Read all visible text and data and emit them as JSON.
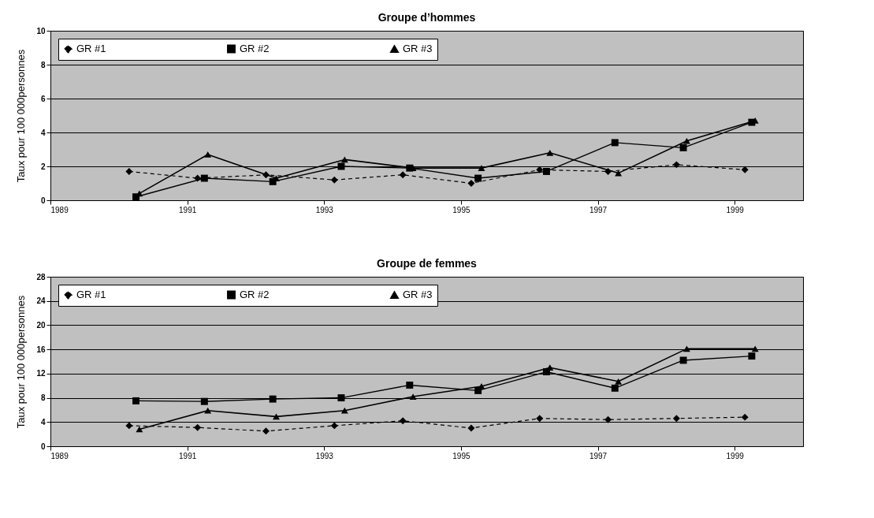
{
  "chart_data": [
    {
      "type": "line",
      "title": "Groupe d’hommes",
      "ylabel": "Taux pour 100 000personnes",
      "xlim": [
        1989,
        2000
      ],
      "xticks": [
        1989,
        1991,
        1993,
        1995,
        1997,
        1999
      ],
      "ylim": [
        0,
        10
      ],
      "yticks": [
        0,
        2,
        4,
        6,
        8,
        10
      ],
      "grid": "y",
      "legend": "top left",
      "series": [
        {
          "name": "GR #1",
          "color": "#000000",
          "marker": "diamond",
          "line_style": "dashed",
          "x": [
            1990.15,
            1991.15,
            1992.15,
            1993.15,
            1994.15,
            1995.15,
            1996.15,
            1997.15,
            1998.15,
            1999.15
          ],
          "values": [
            1.7,
            1.3,
            1.5,
            1.2,
            1.5,
            1.0,
            1.8,
            1.7,
            2.1,
            1.8
          ]
        },
        {
          "name": "GR #2",
          "color": "#000000",
          "marker": "square",
          "line_style": "solid",
          "x": [
            1990.25,
            1991.25,
            1992.25,
            1993.25,
            1994.25,
            1995.25,
            1996.25,
            1997.25,
            1998.25,
            1999.25
          ],
          "values": [
            0.2,
            1.3,
            1.1,
            2.0,
            1.9,
            1.3,
            1.7,
            3.4,
            3.1,
            4.6
          ]
        },
        {
          "name": "GR #3",
          "color": "#000000",
          "marker": "triangle",
          "line_style": "solid",
          "x": [
            1990.3,
            1991.3,
            1992.3,
            1993.3,
            1994.3,
            1995.3,
            1996.3,
            1997.3,
            1998.3,
            1999.3
          ],
          "values": [
            0.4,
            2.7,
            1.3,
            2.4,
            1.9,
            1.9,
            2.8,
            1.6,
            3.5,
            4.7
          ]
        }
      ]
    },
    {
      "type": "line",
      "title": "Groupe de femmes",
      "ylabel": "Taux pour 100 000personnes",
      "xlim": [
        1989,
        2000
      ],
      "xticks": [
        1989,
        1991,
        1993,
        1995,
        1997,
        1999
      ],
      "ylim": [
        0,
        28
      ],
      "yticks": [
        0,
        4,
        8,
        12,
        16,
        20,
        24,
        28
      ],
      "grid": "y",
      "legend": "top left",
      "series": [
        {
          "name": "GR #1",
          "color": "#000000",
          "marker": "diamond",
          "line_style": "dashed",
          "x": [
            1990.15,
            1991.15,
            1992.15,
            1993.15,
            1994.15,
            1995.15,
            1996.15,
            1997.15,
            1998.15,
            1999.15
          ],
          "values": [
            3.4,
            3.1,
            2.5,
            3.4,
            4.2,
            3.0,
            4.6,
            4.4,
            4.6,
            4.8
          ]
        },
        {
          "name": "GR #2",
          "color": "#000000",
          "marker": "square",
          "line_style": "solid",
          "x": [
            1990.25,
            1991.25,
            1992.25,
            1993.25,
            1994.25,
            1995.25,
            1996.25,
            1997.25,
            1998.25,
            1999.25
          ],
          "values": [
            7.5,
            7.4,
            7.8,
            8.0,
            10.1,
            9.2,
            12.3,
            9.6,
            14.2,
            14.9
          ]
        },
        {
          "name": "GR #3",
          "color": "#000000",
          "marker": "triangle",
          "line_style": "solid",
          "x": [
            1990.3,
            1991.3,
            1992.3,
            1993.3,
            1994.3,
            1995.3,
            1996.3,
            1997.3,
            1998.3,
            1999.3
          ],
          "values": [
            2.8,
            5.9,
            4.9,
            5.9,
            8.2,
            9.9,
            13.0,
            10.7,
            16.1,
            16.1
          ]
        }
      ]
    }
  ]
}
